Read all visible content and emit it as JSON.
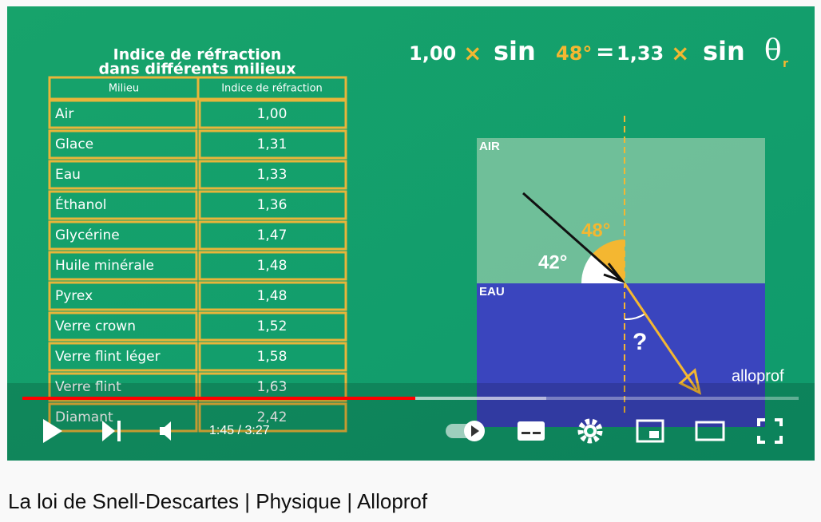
{
  "video": {
    "table_title": [
      "Indice de réfraction",
      "dans différents milieux"
    ],
    "table": {
      "headers": [
        "Milieu",
        "Indice de réfraction"
      ],
      "rows": [
        [
          "Air",
          "1,00"
        ],
        [
          "Glace",
          "1,31"
        ],
        [
          "Eau",
          "1,33"
        ],
        [
          "Éthanol",
          "1,36"
        ],
        [
          "Glycérine",
          "1,47"
        ],
        [
          "Huile minérale",
          "1,48"
        ],
        [
          "Pyrex",
          "1,48"
        ],
        [
          "Verre crown",
          "1,52"
        ],
        [
          "Verre flint léger",
          "1,58"
        ],
        [
          "Verre flint",
          "1,63"
        ],
        [
          "Diamant",
          "2,42"
        ]
      ]
    },
    "equation": {
      "left_coef": "1,00",
      "times": "×",
      "sin": "sin",
      "angle": "48°",
      "equals": "=",
      "right_coef": "1,33",
      "theta": "θ",
      "sub": "r"
    },
    "diagram": {
      "air": "AIR",
      "water": "EAU",
      "incidence": "48°",
      "complement": "42°",
      "unknown": "?"
    },
    "watermark": "alloprof"
  },
  "player": {
    "time": "1:45 / 3:27"
  },
  "title": "La loi de Snell-Descartes | Physique | Alloprof"
}
